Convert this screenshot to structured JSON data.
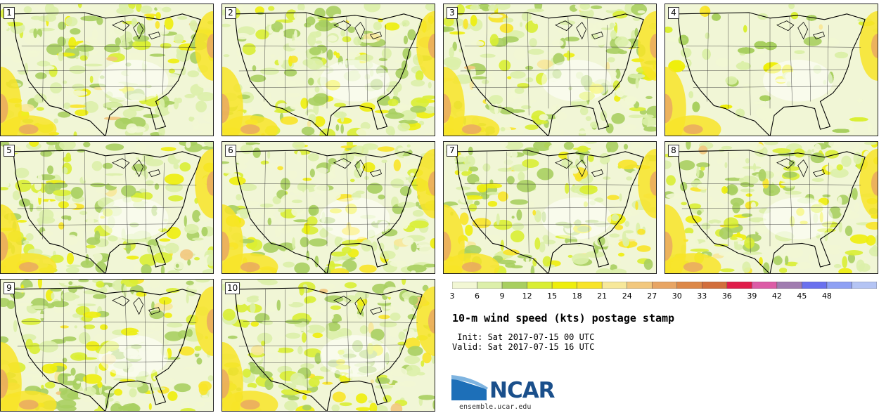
{
  "members": [
    "1",
    "2",
    "3",
    "4",
    "5",
    "6",
    "7",
    "8",
    "9",
    "10"
  ],
  "colorbar": {
    "levels": [
      "3",
      "6",
      "9",
      "12",
      "15",
      "18",
      "21",
      "24",
      "27",
      "30",
      "33",
      "36",
      "39",
      "42",
      "45",
      "48"
    ],
    "colors": [
      "#f2f7d4",
      "#dcefaa",
      "#a8cf60",
      "#d9ee34",
      "#eeee0c",
      "#f8e428",
      "#f7e89a",
      "#f2c87e",
      "#e8a564",
      "#dd8848",
      "#d26e3c",
      "#e01c4a",
      "#dc5ca6",
      "#a07cb0",
      "#6a70ee",
      "#8ea0f4",
      "#b4c4f4"
    ]
  },
  "title": "10-m wind speed (kts) postage stamp",
  "init_line": " Init: Sat 2017-07-15 00 UTC",
  "valid_line": "Valid: Sat 2017-07-15 16 UTC",
  "logo": {
    "name": "NCAR",
    "url": "ensemble.ucar.edu",
    "color": "#1a4f8b"
  }
}
